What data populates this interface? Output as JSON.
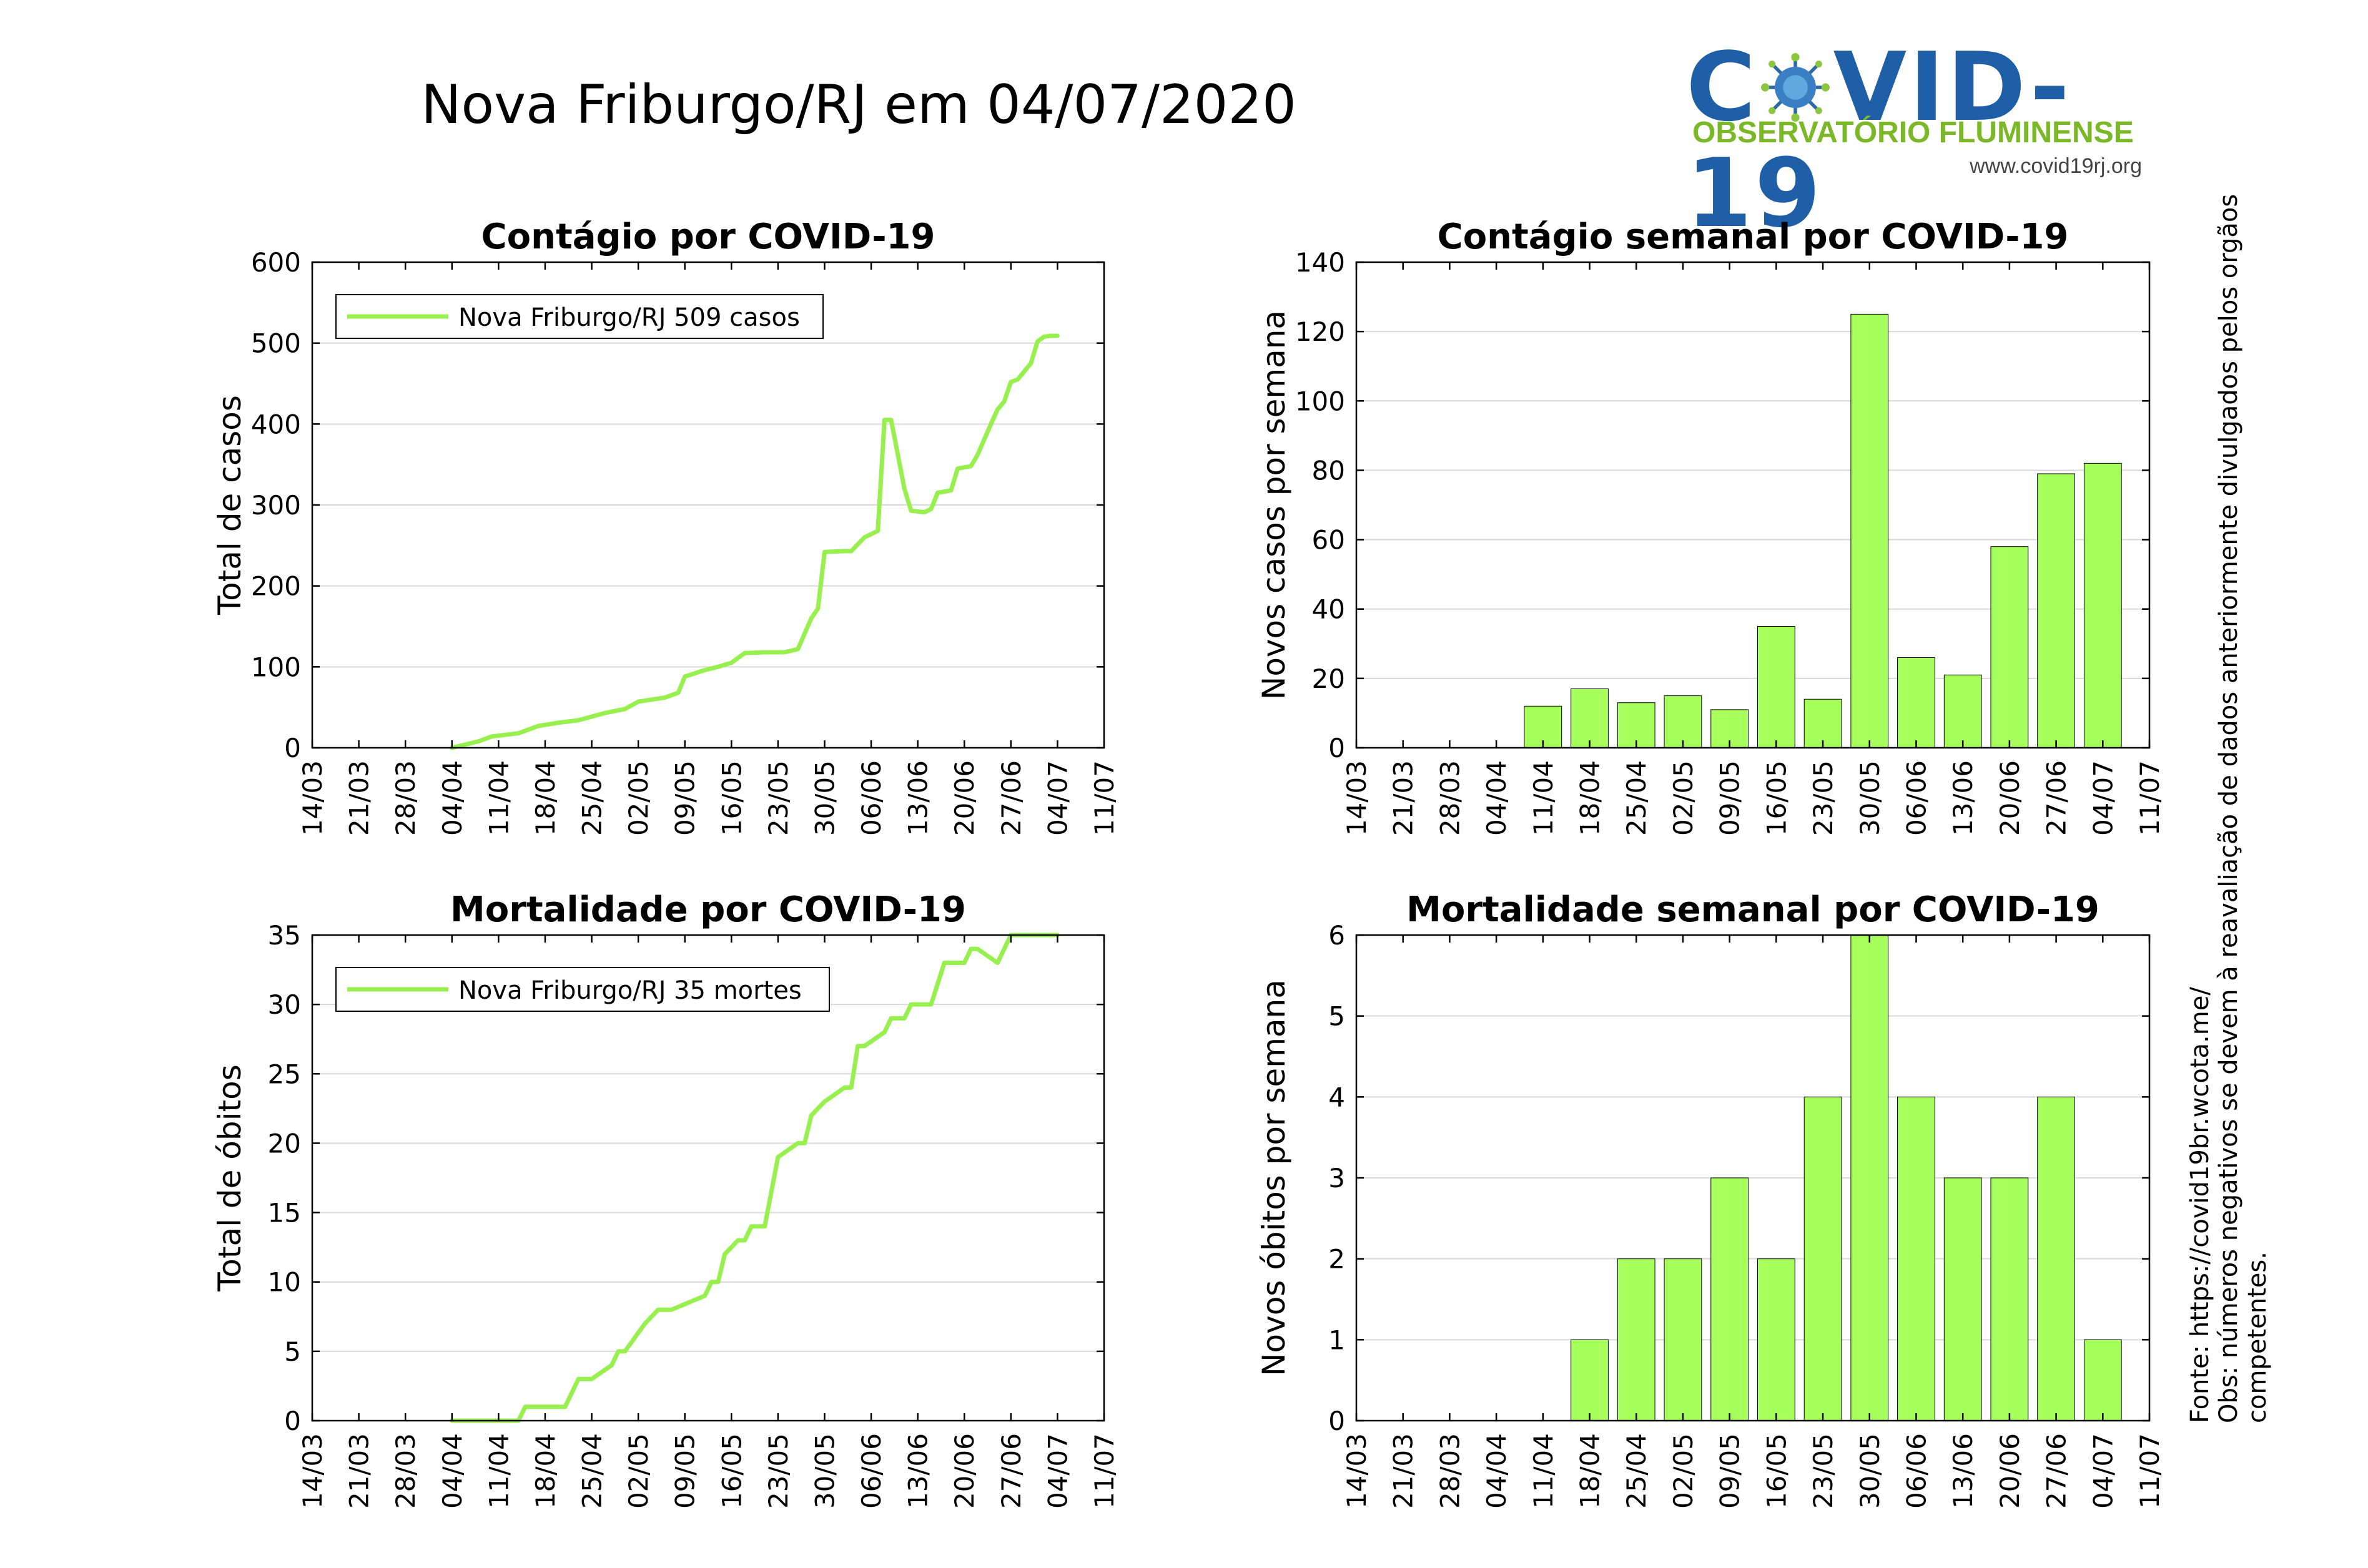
{
  "title": "Nova Friburgo/RJ em 04/07/2020",
  "logo": {
    "main_prefix": "C",
    "main_suffix": "VID-19",
    "subtitle": "OBSERVATÓRIO FLUMINENSE",
    "url": "www.covid19rj.org"
  },
  "notes": {
    "source": "Fonte: https://covid19br.wcota.me/",
    "obs": "Obs: números negativos se devem à reavaliação de dados anteriormente divulgados pelos orgãos competentes."
  },
  "colors": {
    "series": "#a6ff5a",
    "line": "#98f04e",
    "axis": "#000000",
    "grid": "#d9d9d9",
    "logo_blue": "#1f5fa8",
    "logo_green": "#7ab828"
  },
  "chart_data": [
    {
      "id": "cases_cumulative",
      "type": "line",
      "title": "Contágio por COVID-19",
      "ylabel": "Total de casos",
      "xlabel": "",
      "x_ticks": [
        "14/03",
        "21/03",
        "28/03",
        "04/04",
        "11/04",
        "18/04",
        "25/04",
        "02/05",
        "09/05",
        "16/05",
        "23/05",
        "30/05",
        "06/06",
        "13/06",
        "20/06",
        "27/06",
        "04/07",
        "11/07"
      ],
      "ylim": [
        0,
        600
      ],
      "y_ticks": [
        0,
        100,
        200,
        300,
        400,
        500,
        600
      ],
      "grid": true,
      "legend_position": "top-left",
      "series": [
        {
          "name": "Nova Friburgo/RJ  509 casos",
          "x": [
            "04/04",
            "08/04",
            "10/04",
            "14/04",
            "17/04",
            "20/04",
            "23/04",
            "27/04",
            "30/04",
            "02/05",
            "06/05",
            "08/05",
            "09/05",
            "12/05",
            "14/05",
            "16/05",
            "18/05",
            "21/05",
            "24/05",
            "26/05",
            "28/05",
            "29/05",
            "30/05",
            "02/06",
            "03/06",
            "05/06",
            "07/06",
            "08/06",
            "09/06",
            "11/06",
            "12/06",
            "14/06",
            "15/06",
            "16/06",
            "18/06",
            "19/06",
            "21/06",
            "22/06",
            "24/06",
            "25/06",
            "26/06",
            "27/06",
            "28/06",
            "30/06",
            "01/07",
            "02/07",
            "03/07",
            "04/07"
          ],
          "y": [
            0,
            8,
            14,
            18,
            27,
            31,
            34,
            43,
            48,
            57,
            62,
            68,
            88,
            96,
            100,
            105,
            117,
            118,
            118,
            122,
            160,
            172,
            242,
            243,
            243,
            260,
            268,
            405,
            405,
            320,
            293,
            291,
            295,
            315,
            318,
            345,
            348,
            362,
            400,
            418,
            428,
            452,
            455,
            475,
            502,
            508,
            509,
            509
          ]
        }
      ]
    },
    {
      "id": "cases_weekly",
      "type": "bar",
      "title": "Contágio semanal por COVID-19",
      "ylabel": "Novos casos por semana",
      "xlabel": "",
      "x_ticks": [
        "14/03",
        "21/03",
        "28/03",
        "04/04",
        "11/04",
        "18/04",
        "25/04",
        "02/05",
        "09/05",
        "16/05",
        "23/05",
        "30/05",
        "06/06",
        "13/06",
        "20/06",
        "27/06",
        "04/07",
        "11/07"
      ],
      "ylim": [
        0,
        140
      ],
      "y_ticks": [
        0,
        20,
        40,
        60,
        80,
        100,
        120,
        140
      ],
      "grid": true,
      "categories": [
        "11/04",
        "18/04",
        "25/04",
        "02/05",
        "09/05",
        "16/05",
        "23/05",
        "30/05",
        "06/06",
        "13/06",
        "20/06",
        "27/06",
        "04/07"
      ],
      "values": [
        12,
        17,
        13,
        15,
        11,
        35,
        14,
        125,
        26,
        21,
        58,
        79,
        82
      ]
    },
    {
      "id": "deaths_cumulative",
      "type": "line",
      "title": "Mortalidade por COVID-19",
      "ylabel": "Total de óbitos",
      "xlabel": "",
      "x_ticks": [
        "14/03",
        "21/03",
        "28/03",
        "04/04",
        "11/04",
        "18/04",
        "25/04",
        "02/05",
        "09/05",
        "16/05",
        "23/05",
        "30/05",
        "06/06",
        "13/06",
        "20/06",
        "27/06",
        "04/07",
        "11/07"
      ],
      "ylim": [
        0,
        35
      ],
      "y_ticks": [
        0,
        5,
        10,
        15,
        20,
        25,
        30,
        35
      ],
      "grid": true,
      "legend_position": "top-left",
      "series": [
        {
          "name": "Nova Friburgo/RJ  35 mortes",
          "x": [
            "04/04",
            "14/04",
            "15/04",
            "16/04",
            "21/04",
            "22/04",
            "23/04",
            "25/04",
            "28/04",
            "29/04",
            "30/04",
            "03/05",
            "05/05",
            "06/05",
            "07/05",
            "12/05",
            "13/05",
            "14/05",
            "15/05",
            "17/05",
            "18/05",
            "19/05",
            "21/05",
            "23/05",
            "26/05",
            "27/05",
            "28/05",
            "30/05",
            "02/06",
            "03/06",
            "04/06",
            "05/06",
            "08/06",
            "09/06",
            "11/06",
            "12/06",
            "13/06",
            "15/06",
            "17/06",
            "20/06",
            "21/06",
            "22/06",
            "25/06",
            "27/06",
            "28/06",
            "29/06",
            "30/06",
            "01/07",
            "02/07",
            "04/07"
          ],
          "y": [
            0,
            0,
            1,
            1,
            1,
            2,
            3,
            3,
            4,
            5,
            5,
            7,
            8,
            8,
            8,
            9,
            10,
            10,
            12,
            13,
            13,
            14,
            14,
            19,
            20,
            20,
            22,
            23,
            24,
            24,
            27,
            27,
            28,
            29,
            29,
            30,
            30,
            30,
            33,
            33,
            34,
            34,
            33,
            35,
            35,
            35,
            35,
            35,
            35,
            35
          ]
        }
      ]
    },
    {
      "id": "deaths_weekly",
      "type": "bar",
      "title": "Mortalidade semanal por COVID-19",
      "ylabel": "Novos óbitos por semana",
      "xlabel": "",
      "x_ticks": [
        "14/03",
        "21/03",
        "28/03",
        "04/04",
        "11/04",
        "18/04",
        "25/04",
        "02/05",
        "09/05",
        "16/05",
        "23/05",
        "30/05",
        "06/06",
        "13/06",
        "20/06",
        "27/06",
        "04/07",
        "11/07"
      ],
      "ylim": [
        0,
        6
      ],
      "y_ticks": [
        0,
        1,
        2,
        3,
        4,
        5,
        6
      ],
      "grid": true,
      "categories": [
        "18/04",
        "25/04",
        "02/05",
        "09/05",
        "16/05",
        "23/05",
        "30/05",
        "06/06",
        "13/06",
        "20/06",
        "27/06",
        "04/07"
      ],
      "values": [
        1,
        2,
        2,
        3,
        2,
        4,
        6,
        4,
        3,
        3,
        4,
        1
      ]
    }
  ]
}
